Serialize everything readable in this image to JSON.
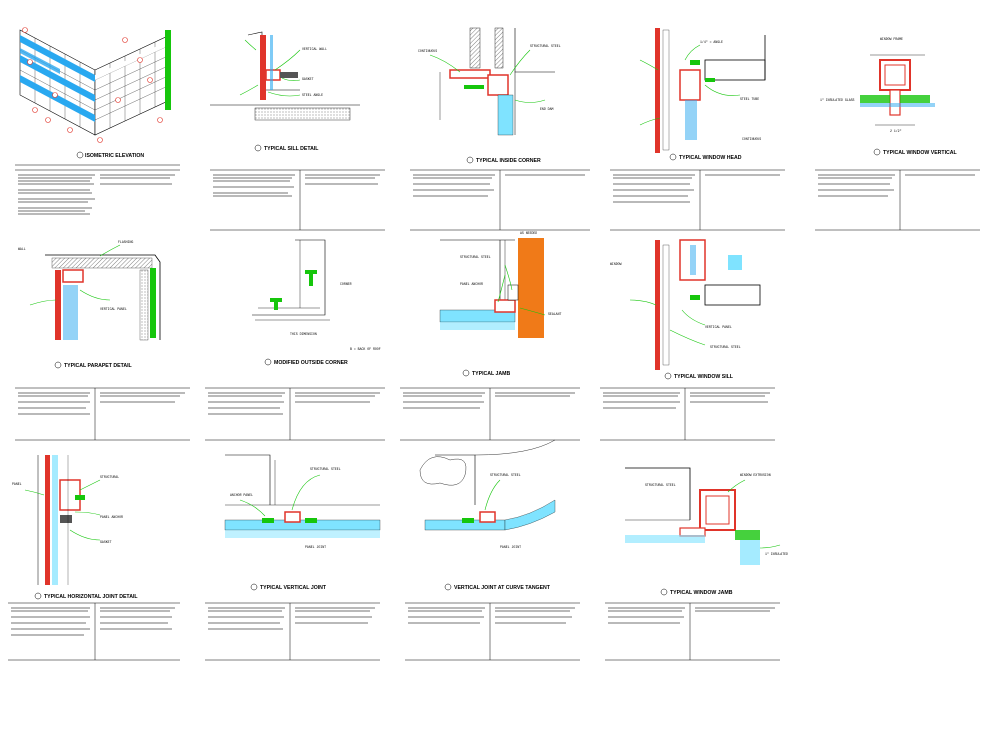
{
  "sheet": {
    "accent_colors": {
      "green": "#16c60c",
      "red": "#e0342a",
      "blue": "#29a8f0",
      "orange": "#f07a18",
      "cyan": "#7fe3ff",
      "pink": "#f7b0b0"
    },
    "row1_captions": [
      "ISOMETRIC ELEVATION",
      "TYPICAL SILL DETAIL",
      "TYPICAL INSIDE CORNER",
      "TYPICAL WINDOW HEAD",
      "TYPICAL WINDOW VERTICAL"
    ],
    "row2_captions": [
      "TYPICAL PARAPET DETAIL",
      "MODIFIED OUTSIDE CORNER",
      "TYPICAL JAMB",
      "TYPICAL WINDOW SILL"
    ],
    "row3_captions": [
      "TYPICAL HORIZONTAL JOINT DETAIL",
      "TYPICAL VERTICAL JOINT",
      "VERTICAL JOINT AT CURVE TANGENT",
      "TYPICAL WINDOW JAMB"
    ]
  }
}
